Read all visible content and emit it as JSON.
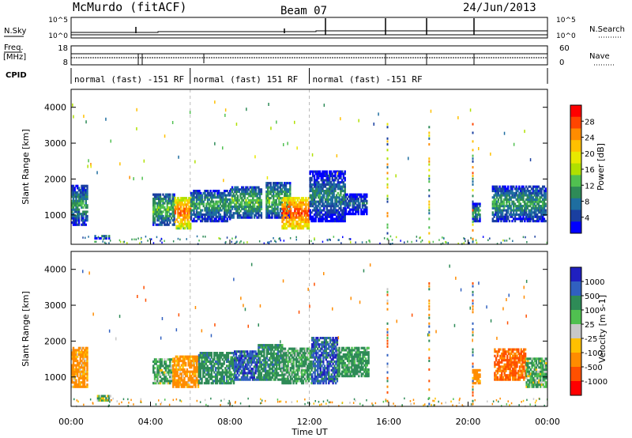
{
  "header": {
    "title": "McMurdo (fitACF)",
    "beam": "Beam 07",
    "date": "24/Jun/2013"
  },
  "top_panels": {
    "nsky_label": "N.Sky",
    "nsky_tick_hi": "10^5",
    "nsky_tick_lo": "10^0",
    "nsearch_label": "N.Search",
    "nsearch_tick_hi": "10^5",
    "nsearch_tick_lo": "10^0",
    "freq_label": "Freq.",
    "freq_unit": "[MHz]",
    "freq_tick_hi": "18",
    "freq_tick_lo": "8",
    "nave_label": "Nave",
    "nave_tick_hi": "60",
    "nave_tick_lo": "0",
    "cpid_label": "CPID",
    "cpid_segments": [
      {
        "label": "normal (fast) -151 RF",
        "start_hr": 0,
        "end_hr": 6.0
      },
      {
        "label": "normal (fast) 151 RF",
        "start_hr": 6.0,
        "end_hr": 12.0
      },
      {
        "label": "normal (fast) -151 RF",
        "start_hr": 12.0,
        "end_hr": 24
      }
    ]
  },
  "axes": {
    "ylabel": "Slant Range [km]",
    "yticks": [
      "1000",
      "2000",
      "3000",
      "4000"
    ],
    "xticks": [
      "00:00",
      "04:00",
      "08:00",
      "12:00",
      "16:00",
      "20:00",
      "00:00"
    ],
    "xlabel": "Time UT"
  },
  "power_colorbar": {
    "label": "Power [dB]",
    "ticks": [
      "28",
      "24",
      "20",
      "16",
      "12",
      "8",
      "4"
    ],
    "colors": [
      "#ff0000",
      "#ff4500",
      "#ff8c00",
      "#ffc000",
      "#e8e800",
      "#b0e000",
      "#50c050",
      "#2e8b57",
      "#1e6ea0",
      "#1a3fa0",
      "#0000ff"
    ]
  },
  "velocity_colorbar": {
    "label": "Velocity [m s-1]",
    "ticks": [
      "1000",
      "500",
      "100",
      "25",
      "-25",
      "-100",
      "-500",
      "-1000"
    ],
    "colors": [
      "#2020c0",
      "#3060c0",
      "#2e8b57",
      "#50c050",
      "#c8c8c8",
      "#ffc000",
      "#ff8c00",
      "#ff5000",
      "#ff0000"
    ]
  },
  "chart_data": [
    {
      "type": "heatmap",
      "name": "power",
      "x_unit": "hours UT",
      "xlim": [
        0,
        24
      ],
      "ylim": [
        180,
        4500
      ],
      "zlabel": "Power [dB]",
      "zlim": [
        0,
        32
      ],
      "clusters": [
        {
          "t0": 0.0,
          "t1": 0.8,
          "r0": 700,
          "r1": 1800,
          "p": 12
        },
        {
          "t0": 1.1,
          "t1": 1.9,
          "r0": 320,
          "r1": 420,
          "p": 10
        },
        {
          "t0": 4.1,
          "t1": 5.2,
          "r0": 700,
          "r1": 1600,
          "p": 14
        },
        {
          "t0": 5.2,
          "t1": 6.0,
          "r0": 600,
          "r1": 1500,
          "p": 26
        },
        {
          "t0": 6.0,
          "t1": 8.0,
          "r0": 800,
          "r1": 1700,
          "p": 12
        },
        {
          "t0": 8.0,
          "t1": 9.6,
          "r0": 900,
          "r1": 1800,
          "p": 14
        },
        {
          "t0": 9.8,
          "t1": 11.0,
          "r0": 900,
          "r1": 1900,
          "p": 14
        },
        {
          "t0": 10.6,
          "t1": 12.0,
          "r0": 600,
          "r1": 1500,
          "p": 28
        },
        {
          "t0": 12.0,
          "t1": 13.8,
          "r0": 800,
          "r1": 2200,
          "p": 10
        },
        {
          "t0": 13.8,
          "t1": 14.9,
          "r0": 1000,
          "r1": 1600,
          "p": 8
        },
        {
          "t0": 20.2,
          "t1": 20.6,
          "r0": 800,
          "r1": 1300,
          "p": 12
        },
        {
          "t0": 21.2,
          "t1": 23.9,
          "r0": 800,
          "r1": 1800,
          "p": 12
        }
      ]
    },
    {
      "type": "heatmap",
      "name": "velocity",
      "x_unit": "hours UT",
      "xlim": [
        0,
        24
      ],
      "ylim": [
        180,
        4500
      ],
      "zlabel": "Velocity [m s-1]",
      "zlim": [
        -1000,
        1000
      ],
      "clusters": [
        {
          "t0": 0.0,
          "t1": 0.8,
          "r0": 700,
          "r1": 1800,
          "v": -200
        },
        {
          "t0": 1.3,
          "t1": 2.0,
          "r0": 320,
          "r1": 450,
          "v": 60
        },
        {
          "t0": 4.1,
          "t1": 5.1,
          "r0": 800,
          "r1": 1500,
          "v": 100
        },
        {
          "t0": 5.1,
          "t1": 6.4,
          "r0": 700,
          "r1": 1600,
          "v": -200
        },
        {
          "t0": 6.4,
          "t1": 8.2,
          "r0": 800,
          "r1": 1700,
          "v": 300
        },
        {
          "t0": 8.2,
          "t1": 9.4,
          "r0": 900,
          "r1": 1700,
          "v": 800
        },
        {
          "t0": 9.4,
          "t1": 10.6,
          "r0": 900,
          "r1": 1900,
          "v": 300
        },
        {
          "t0": 10.6,
          "t1": 12.1,
          "r0": 800,
          "r1": 1800,
          "v": 150
        },
        {
          "t0": 12.1,
          "t1": 13.4,
          "r0": 800,
          "r1": 2100,
          "v": 800
        },
        {
          "t0": 13.4,
          "t1": 15.0,
          "r0": 1000,
          "r1": 1800,
          "v": 200
        },
        {
          "t0": 20.2,
          "t1": 20.6,
          "r0": 800,
          "r1": 1200,
          "v": -200
        },
        {
          "t0": 21.3,
          "t1": 22.9,
          "r0": 900,
          "r1": 1800,
          "v": -600
        },
        {
          "t0": 22.9,
          "t1": 23.9,
          "r0": 700,
          "r1": 1500,
          "v": 100
        }
      ]
    }
  ]
}
